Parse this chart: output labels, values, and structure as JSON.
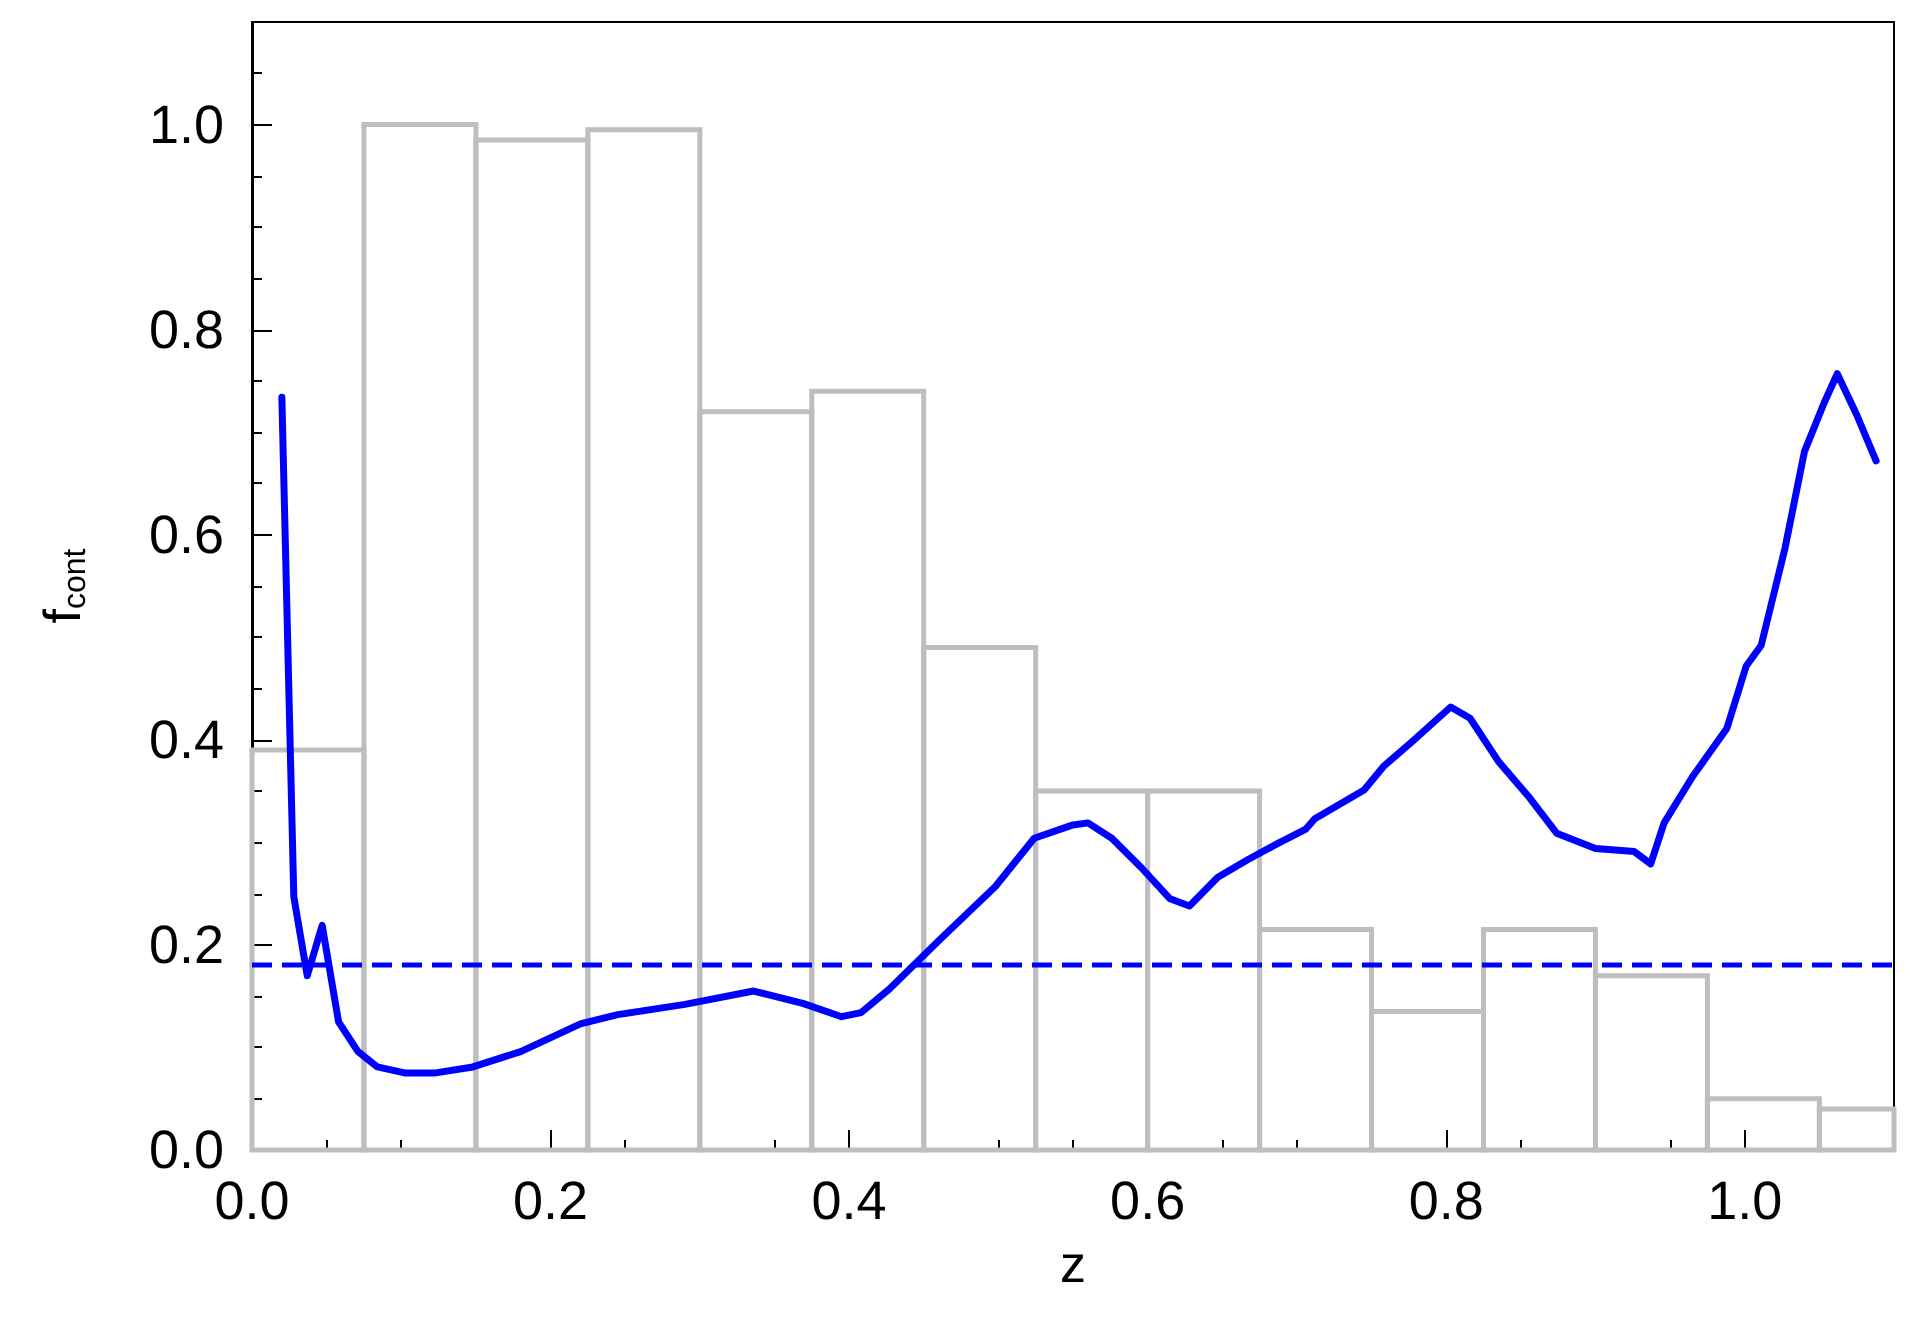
{
  "chart_data": {
    "type": "histogram",
    "xlabel": "z",
    "ylabel": "f$_{cont}$",
    "bins": [
      0,
      0.075,
      0.15,
      0.225,
      0.3,
      0.375,
      0.45,
      0.525,
      0.6,
      0.675,
      0.75,
      0.825,
      0.9,
      0.975,
      1.05,
      1.1
    ],
    "values": [
      0.39,
      1.0,
      0.985,
      0.995,
      0.72,
      0.74,
      0.49,
      0.35,
      0.35,
      0.215,
      0.135,
      0.215,
      0.17,
      0.05,
      0.04
    ],
    "color": "#bebebe",
    "series": [
      {
        "type": "line",
        "color": "#0000ff",
        "x": [
          0.02,
          0.028,
          0.037,
          0.047,
          0.058,
          0.071,
          0.084,
          0.103,
          0.122,
          0.148,
          0.18,
          0.22,
          0.245,
          0.29,
          0.336,
          0.369,
          0.395,
          0.408,
          0.427,
          0.46,
          0.498,
          0.524,
          0.55,
          0.56,
          0.576,
          0.596,
          0.615,
          0.628,
          0.647,
          0.667,
          0.686,
          0.706,
          0.712,
          0.745,
          0.758,
          0.777,
          0.803,
          0.816,
          0.835,
          0.855,
          0.874,
          0.9,
          0.926,
          0.937,
          0.946,
          0.965,
          0.988,
          1.001,
          1.011,
          1.027,
          1.04,
          1.053,
          1.062,
          1.075,
          1.088
        ],
        "values": [
          0.734,
          0.247,
          0.17,
          0.219,
          0.125,
          0.096,
          0.081,
          0.075,
          0.075,
          0.081,
          0.096,
          0.123,
          0.132,
          0.142,
          0.155,
          0.143,
          0.13,
          0.134,
          0.157,
          0.204,
          0.257,
          0.304,
          0.317,
          0.319,
          0.304,
          0.275,
          0.245,
          0.238,
          0.266,
          0.283,
          0.298,
          0.313,
          0.323,
          0.351,
          0.374,
          0.398,
          0.432,
          0.421,
          0.379,
          0.345,
          0.309,
          0.294,
          0.291,
          0.279,
          0.319,
          0.364,
          0.411,
          0.472,
          0.492,
          0.587,
          0.681,
          0.728,
          0.757,
          0.717,
          0.672
        ]
      }
    ],
    "ref_lines": [
      {
        "axis": "y",
        "value": 0.18,
        "color": "#0000ff",
        "line_style": "dashed"
      }
    ],
    "xlim": [
      0,
      1.1
    ],
    "ylim": [
      0,
      1.1
    ],
    "xticks": [
      {
        "value": 0,
        "label": "0.0"
      },
      0.2,
      0.4,
      0.6,
      0.8,
      {
        "value": 1,
        "label": "1.0"
      }
    ],
    "yticks": [
      {
        "value": 0,
        "label": "0.0"
      },
      0.2,
      0.4,
      0.6,
      0.8,
      {
        "value": 1,
        "label": "1.0"
      }
    ],
    "grid": false
  }
}
